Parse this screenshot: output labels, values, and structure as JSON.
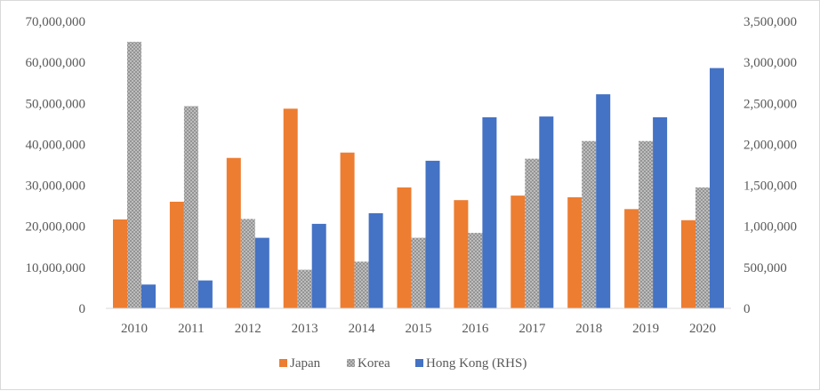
{
  "chart_data": {
    "type": "bar",
    "categories": [
      "2010",
      "2011",
      "2012",
      "2013",
      "2014",
      "2015",
      "2016",
      "2017",
      "2018",
      "2019",
      "2020"
    ],
    "series": [
      {
        "name": "Japan",
        "axis": "left",
        "color": "#ed7d31",
        "values": [
          21700000,
          26000000,
          36700000,
          48700000,
          38000000,
          29500000,
          26400000,
          27500000,
          27100000,
          24200000,
          21500000
        ]
      },
      {
        "name": "Korea",
        "axis": "left",
        "color": "#a5a5a5",
        "pattern": "crosshatch",
        "values": [
          65000000,
          49300000,
          21800000,
          9400000,
          11400000,
          17200000,
          18400000,
          36500000,
          40800000,
          40800000,
          29500000
        ]
      },
      {
        "name": "Hong Kong (RHS)",
        "axis": "right",
        "color": "#4472c4",
        "values": [
          290000,
          340000,
          860000,
          1030000,
          1160000,
          1800000,
          2330000,
          2340000,
          2610000,
          2330000,
          2930000
        ]
      }
    ],
    "y_left": {
      "min": 0,
      "max": 70000000,
      "ticks": [
        "0",
        "10,000,000",
        "20,000,000",
        "30,000,000",
        "40,000,000",
        "50,000,000",
        "60,000,000",
        "70,000,000"
      ]
    },
    "y_right": {
      "min": 0,
      "max": 3500000,
      "ticks": [
        "0",
        "500,000",
        "1,000,000",
        "1,500,000",
        "2,000,000",
        "2,500,000",
        "3,000,000",
        "3,500,000"
      ]
    },
    "title": "",
    "xlabel": "",
    "ylabel": "",
    "grid": false,
    "legend_position": "bottom",
    "legend": [
      "Japan",
      "Korea",
      "Hong Kong (RHS)"
    ]
  }
}
